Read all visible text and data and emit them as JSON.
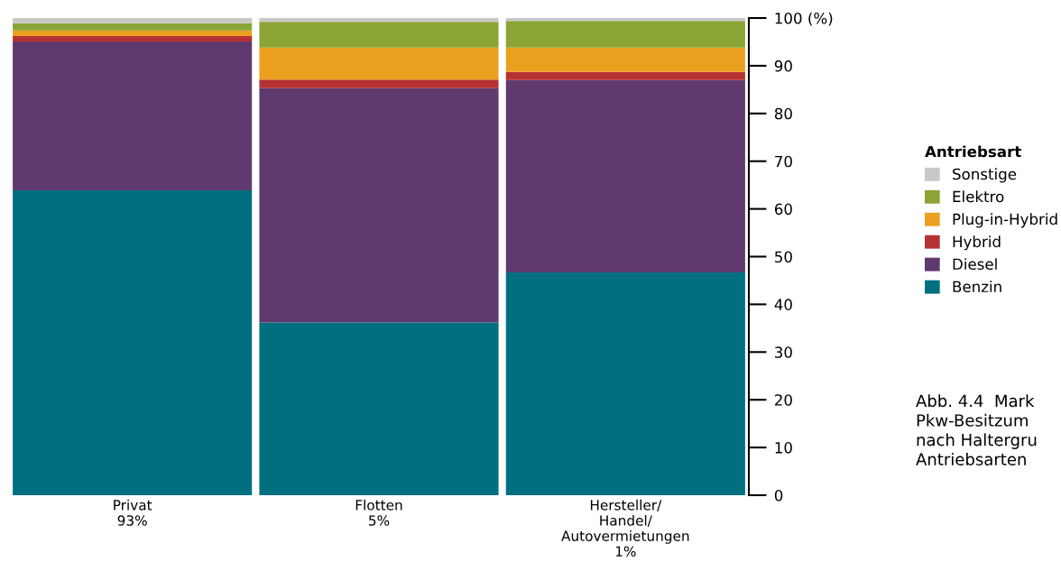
{
  "chart_data": {
    "type": "bar",
    "stacked": true,
    "categories": [
      "Privat\n93%",
      "Flotten\n5%",
      "Hersteller/\nHandel/\nAutovermietungen\n1%"
    ],
    "series": [
      {
        "name": "Benzin",
        "color": "#007080",
        "values": [
          63.9,
          36.2,
          46.7
        ]
      },
      {
        "name": "Diesel",
        "color": "#5e3a6e",
        "values": [
          31.2,
          49.1,
          40.3
        ]
      },
      {
        "name": "Hybrid",
        "color": "#b53232",
        "values": [
          1.1,
          1.8,
          1.7
        ]
      },
      {
        "name": "Plug-in-Hybrid",
        "color": "#eba020",
        "values": [
          1.2,
          6.7,
          5.1
        ]
      },
      {
        "name": "Elektro",
        "color": "#8aa535",
        "values": [
          1.5,
          5.4,
          5.6
        ]
      },
      {
        "name": "Sonstige",
        "color": "#c8c8c8",
        "values": [
          1.1,
          0.8,
          0.6
        ]
      }
    ],
    "ylim": [
      0,
      100
    ],
    "yticks": [
      0,
      10,
      20,
      30,
      40,
      50,
      60,
      70,
      80,
      90,
      {
        "value": 100,
        "label": "100 (%)"
      }
    ],
    "legend_title": "Antriebsart",
    "legend": "right",
    "grid": false,
    "annotations": [
      "Abb. 4.4  Mark\nPkw-Besitzum\nnach Haltergru\nAntriebsarten"
    ]
  }
}
